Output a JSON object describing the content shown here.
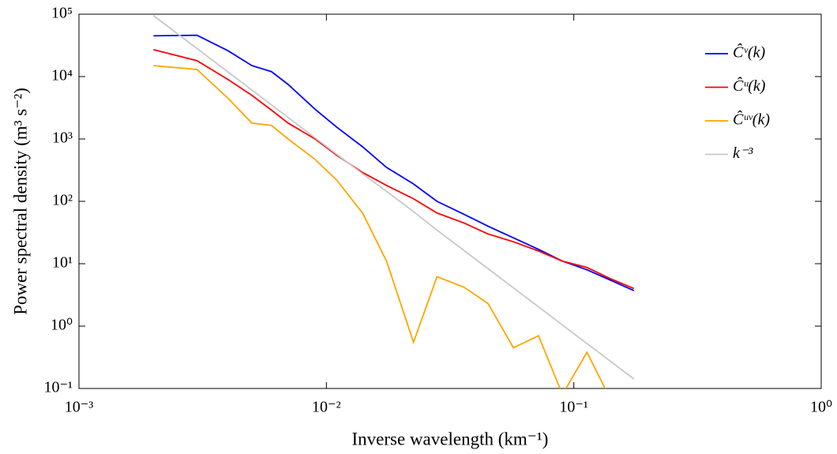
{
  "chart_data": {
    "type": "line",
    "x_label": "Inverse wavelength (km⁻¹)",
    "y_label": "Power spectral density (m³ s⁻²)",
    "xscale": "log",
    "yscale": "log",
    "xlim": [
      0.001,
      1
    ],
    "ylim": [
      0.1,
      100000
    ],
    "xticks": [
      {
        "value": 0.001,
        "label": "10⁻³"
      },
      {
        "value": 0.01,
        "label": "10⁻²"
      },
      {
        "value": 0.1,
        "label": "10⁻¹"
      },
      {
        "value": 1,
        "label": "10⁰"
      }
    ],
    "yticks": [
      {
        "value": 0.1,
        "label": "10⁻¹"
      },
      {
        "value": 1,
        "label": "10⁰"
      },
      {
        "value": 10,
        "label": "10¹"
      },
      {
        "value": 100,
        "label": "10²"
      },
      {
        "value": 1000,
        "label": "10³"
      },
      {
        "value": 10000,
        "label": "10⁴"
      },
      {
        "value": 100000,
        "label": "10⁵"
      }
    ],
    "legend": "upper right",
    "x": [
      0.002,
      0.003,
      0.004,
      0.005,
      0.006,
      0.007,
      0.009,
      0.011,
      0.014,
      0.0175,
      0.0225,
      0.028,
      0.036,
      0.045,
      0.057,
      0.072,
      0.09,
      0.113,
      0.14,
      0.175
    ],
    "series": [
      {
        "name": "Ĉᵛ(k)",
        "color": "#0000ff",
        "values": [
          45000,
          46000,
          26000,
          15000,
          12000,
          7500,
          3000,
          1550,
          750,
          350,
          190,
          100,
          62,
          40,
          26,
          17,
          11,
          8,
          5.5,
          3.7
        ]
      },
      {
        "name": "Ĉᵘ(k)",
        "color": "#ff0000",
        "values": [
          27000,
          18000,
          9000,
          5000,
          2900,
          1800,
          1000,
          550,
          290,
          180,
          110,
          65,
          45,
          30,
          22.5,
          16,
          11,
          8.7,
          5.8,
          4
        ]
      },
      {
        "name": "Ĉᵘᵛ(k)",
        "color": "#ffa500",
        "values": [
          15000,
          13000,
          4500,
          1800,
          1650,
          1000,
          470,
          220,
          65,
          11,
          0.55,
          6.2,
          4.2,
          2.3,
          0.45,
          0.7,
          0.08,
          0.38,
          0.07,
          null
        ]
      },
      {
        "name": "k⁻³",
        "color": "#c8c8c8",
        "values": [
          95000,
          28150,
          11875,
          6080,
          3519,
          2216,
          1042,
          571,
          277,
          145,
          68.3,
          34.6,
          16.3,
          8.34,
          4.1,
          2.04,
          1.04,
          0.526,
          0.277,
          0.142
        ]
      }
    ]
  }
}
